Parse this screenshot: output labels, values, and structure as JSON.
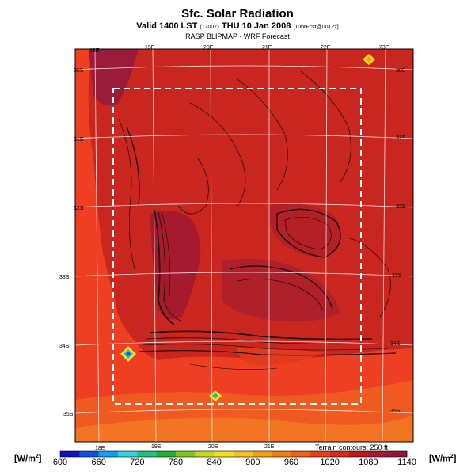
{
  "title": "Sfc. Solar Radiation",
  "subtitle_main": "Valid 1400 LST",
  "subtitle_small1": "(1200Z)",
  "subtitle_date": "THU 10 Jan 2008",
  "subtitle_small2": "[10hrFcst@0012z]",
  "subtitle2": "RASP BLIPMAP - WRF Forecast",
  "lon_labels": [
    "18E",
    "19E",
    "20E",
    "21E",
    "22E",
    "23E"
  ],
  "lat_labels": [
    "30S",
    "31S",
    "32S",
    "33S",
    "34S",
    "35S"
  ],
  "colorbar": {
    "unit_left": "[W/m",
    "unit_right": "[W/m",
    "unit_exp": "2",
    "unit_close": "]",
    "ticks": [
      "600",
      "660",
      "720",
      "780",
      "840",
      "900",
      "960",
      "1020",
      "1080",
      "1140"
    ],
    "colors": [
      "#1010c0",
      "#1050e0",
      "#10a0f0",
      "#30d0e0",
      "#20c080",
      "#20b030",
      "#80c820",
      "#c8d820",
      "#f0e020",
      "#f8c020",
      "#f8a010",
      "#f08010",
      "#f06010",
      "#e84018",
      "#d82818",
      "#c01818",
      "#a81830",
      "#901838"
    ]
  },
  "terrain_note": "Terrain contours: 250 ft",
  "colors": {
    "ocean": "#ef3f22",
    "land_mid": "#c8261f",
    "land_high": "#a01a2e",
    "coast_band": "#f05a20"
  }
}
